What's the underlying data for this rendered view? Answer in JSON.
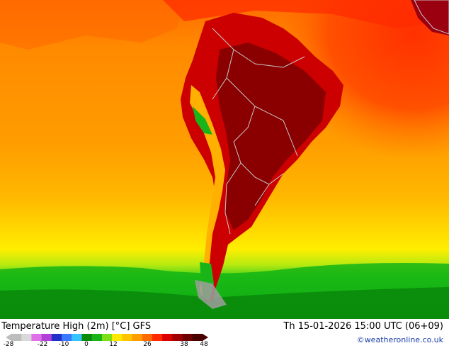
{
  "title": "Temperature High (2m) [°C] GFS",
  "valid_time": "Th 15-01-2026 15:00 UTC (06+09)",
  "credit": "©weatheronline.co.uk",
  "legend": {
    "ticks": [
      "-28",
      "-22",
      "-10",
      "0",
      "12",
      "26",
      "38",
      "48"
    ],
    "colors": [
      "#bdbdbd",
      "#d9d9d9",
      "#e070e8",
      "#b040d8",
      "#2030c8",
      "#3a78ff",
      "#35c4ff",
      "#0a8a0a",
      "#18b418",
      "#7ee014",
      "#ffe800",
      "#ffc400",
      "#ff9d00",
      "#ff6a00",
      "#ff2a00",
      "#d90000",
      "#a00000",
      "#6e0000",
      "#4a0000"
    ]
  },
  "colors": {
    "ocean_warm": "#ff9a00",
    "ocean_hot": "#ff5a00",
    "land_hot": "#cc0000",
    "land_very_hot": "#8a0000",
    "cool_green": "#0a8a0a",
    "border": "#c8c8c8"
  }
}
